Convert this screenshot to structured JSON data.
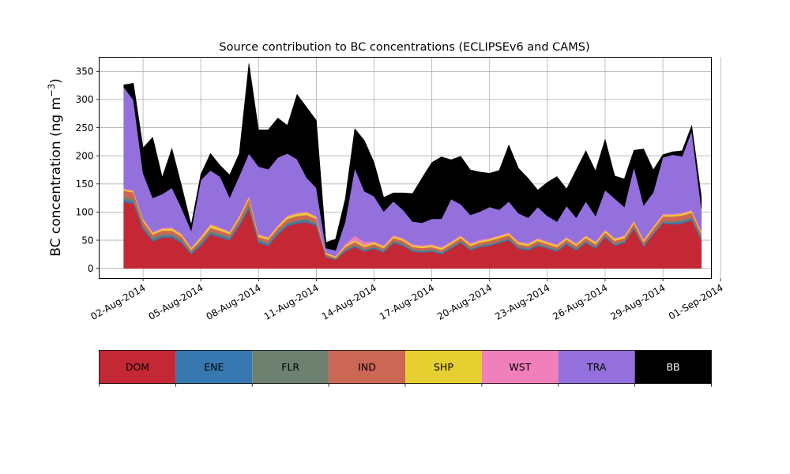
{
  "chart_data": {
    "type": "area",
    "stacked": true,
    "title": "Source contribution to BC concentrations (ECLIPSEv6 and CAMS)",
    "ylabel_prefix": "BC concentration (ng m",
    "ylabel_exp": "−3",
    "ylabel_suffix": ")",
    "xlabel": "",
    "ylim": [
      -18,
      375
    ],
    "grid": true,
    "x_start": "2014-08-01",
    "x_end": "2014-08-31",
    "x_tick_labels": [
      "02-Aug-2014",
      "05-Aug-2014",
      "08-Aug-2014",
      "11-Aug-2014",
      "14-Aug-2014",
      "17-Aug-2014",
      "20-Aug-2014",
      "23-Aug-2014",
      "26-Aug-2014",
      "29-Aug-2014",
      "01-Sep-2014"
    ],
    "y_ticks": [
      0,
      50,
      100,
      150,
      200,
      250,
      300,
      350
    ],
    "x_days": [
      1.0,
      1.5,
      2.0,
      2.5,
      3.0,
      3.5,
      4.0,
      4.5,
      5.0,
      5.5,
      6.0,
      6.5,
      7.0,
      7.5,
      8.0,
      8.5,
      9.0,
      9.5,
      10.0,
      10.5,
      11.0,
      11.5,
      12.0,
      12.5,
      13.0,
      13.5,
      14.0,
      14.5,
      15.0,
      15.5,
      16.0,
      16.5,
      17.0,
      17.5,
      18.0,
      18.5,
      19.0,
      19.5,
      20.0,
      20.5,
      21.0,
      21.5,
      22.0,
      22.5,
      23.0,
      23.5,
      24.0,
      24.5,
      25.0,
      25.5,
      26.0,
      26.5,
      27.0,
      27.5,
      28.0,
      28.5,
      29.0,
      29.5,
      30.0,
      30.5,
      31.0
    ],
    "series": [
      {
        "name": "DOM",
        "color": "#C42835",
        "values": [
          118,
          115,
          70,
          48,
          55,
          55,
          45,
          25,
          40,
          60,
          55,
          50,
          75,
          105,
          45,
          40,
          60,
          75,
          80,
          82,
          75,
          20,
          15,
          30,
          38,
          30,
          35,
          28,
          45,
          40,
          30,
          28,
          30,
          25,
          35,
          45,
          32,
          38,
          40,
          45,
          50,
          35,
          32,
          40,
          35,
          30,
          42,
          32,
          45,
          35,
          55,
          40,
          45,
          70,
          38,
          60,
          80,
          78,
          80,
          85,
          50
        ]
      },
      {
        "name": "ENE",
        "color": "#3878B0",
        "values": [
          4,
          4,
          3,
          3,
          3,
          3,
          3,
          2,
          3,
          3,
          3,
          3,
          3,
          4,
          3,
          3,
          3,
          3,
          3,
          3,
          3,
          1,
          1,
          2,
          2,
          2,
          2,
          2,
          2,
          2,
          2,
          2,
          2,
          2,
          2,
          2,
          2,
          2,
          2,
          2,
          2,
          2,
          2,
          2,
          2,
          2,
          2,
          2,
          2,
          2,
          2,
          2,
          2,
          2,
          2,
          2,
          2,
          3,
          3,
          3,
          3
        ]
      },
      {
        "name": "FLR",
        "color": "#6E8171",
        "values": [
          4,
          4,
          3,
          3,
          3,
          3,
          3,
          2,
          3,
          3,
          3,
          3,
          3,
          4,
          3,
          3,
          3,
          3,
          3,
          3,
          3,
          1,
          1,
          2,
          2,
          2,
          2,
          2,
          2,
          2,
          2,
          2,
          2,
          2,
          2,
          2,
          2,
          2,
          2,
          2,
          2,
          2,
          2,
          2,
          2,
          2,
          2,
          2,
          2,
          2,
          2,
          2,
          2,
          2,
          2,
          2,
          2,
          3,
          3,
          3,
          3
        ]
      },
      {
        "name": "IND",
        "color": "#CC6655",
        "values": [
          12,
          12,
          8,
          6,
          6,
          6,
          6,
          4,
          5,
          6,
          6,
          5,
          7,
          10,
          5,
          5,
          6,
          7,
          7,
          7,
          7,
          3,
          2,
          4,
          5,
          4,
          4,
          4,
          5,
          5,
          4,
          4,
          4,
          4,
          4,
          5,
          4,
          4,
          5,
          5,
          5,
          4,
          4,
          5,
          4,
          4,
          5,
          4,
          5,
          4,
          5,
          5,
          5,
          6,
          5,
          6,
          8,
          8,
          8,
          8,
          6
        ]
      },
      {
        "name": "SHP",
        "color": "#E6CF30",
        "values": [
          2,
          2,
          3,
          3,
          3,
          4,
          3,
          3,
          4,
          5,
          4,
          3,
          4,
          4,
          3,
          3,
          3,
          4,
          4,
          4,
          3,
          2,
          2,
          3,
          3,
          3,
          3,
          3,
          3,
          3,
          3,
          3,
          3,
          3,
          3,
          3,
          3,
          3,
          3,
          3,
          3,
          3,
          3,
          3,
          3,
          3,
          3,
          3,
          3,
          3,
          3,
          3,
          3,
          3,
          3,
          3,
          3,
          3,
          3,
          3,
          3
        ]
      },
      {
        "name": "WST",
        "color": "#F07FBA",
        "values": [
          2,
          2,
          2,
          2,
          2,
          2,
          2,
          1,
          2,
          2,
          2,
          2,
          2,
          2,
          2,
          2,
          2,
          2,
          2,
          2,
          2,
          1,
          1,
          2,
          8,
          6,
          2,
          2,
          2,
          2,
          2,
          2,
          2,
          2,
          2,
          2,
          2,
          2,
          2,
          2,
          2,
          2,
          2,
          2,
          2,
          2,
          2,
          2,
          2,
          2,
          2,
          2,
          2,
          2,
          2,
          2,
          2,
          2,
          2,
          2,
          2
        ]
      },
      {
        "name": "TRA",
        "color": "#9370DB",
        "values": [
          180,
          160,
          80,
          60,
          60,
          70,
          45,
          30,
          100,
          95,
          90,
          60,
          70,
          75,
          120,
          120,
          120,
          110,
          95,
          60,
          50,
          8,
          10,
          40,
          120,
          90,
          80,
          60,
          60,
          50,
          40,
          40,
          45,
          50,
          75,
          55,
          50,
          50,
          55,
          45,
          55,
          50,
          45,
          55,
          45,
          40,
          55,
          45,
          60,
          45,
          70,
          70,
          50,
          95,
          60,
          60,
          100,
          105,
          100,
          140,
          40
        ]
      },
      {
        "name": "BB",
        "color": "#000000",
        "values": [
          4,
          30,
          45,
          108,
          30,
          70,
          40,
          10,
          10,
          30,
          20,
          40,
          40,
          160,
          65,
          70,
          70,
          50,
          115,
          125,
          120,
          10,
          20,
          40,
          70,
          90,
          60,
          25,
          15,
          30,
          50,
          80,
          100,
          110,
          70,
          85,
          80,
          70,
          60,
          70,
          100,
          80,
          70,
          30,
          60,
          80,
          30,
          85,
          90,
          80,
          90,
          40,
          50,
          30,
          100,
          40,
          5,
          5,
          10,
          10,
          20
        ]
      }
    ]
  }
}
